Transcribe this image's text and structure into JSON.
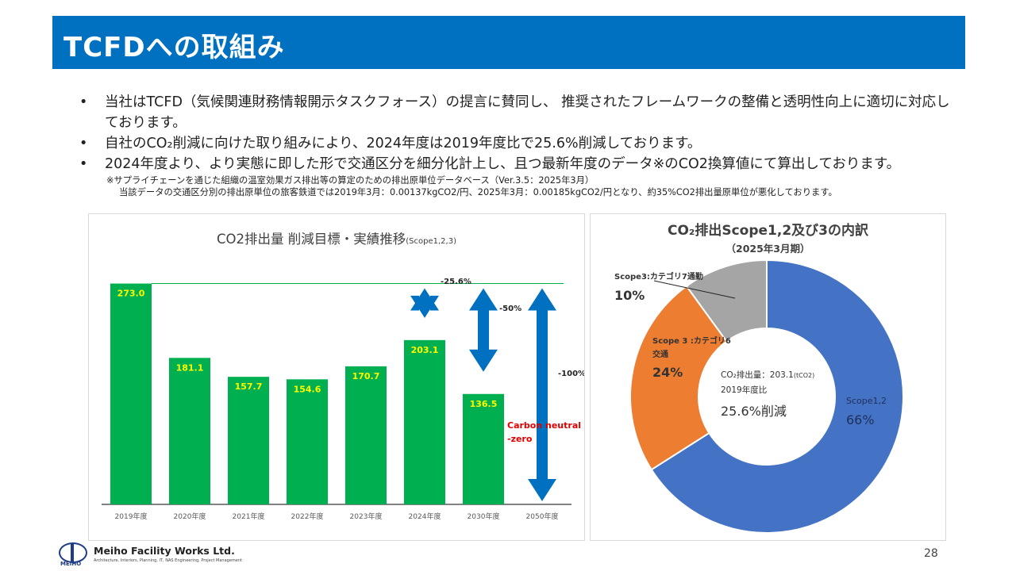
{
  "header": {
    "title": "TCFDへの取組み"
  },
  "bullets": [
    "当社はTCFD（気候関連財務情報開示タスクフォース）の提言に賛同し、 推奨されたフレームワークの整備と透明性向上に適切に対応しております。",
    "自社のCO₂削減に向けた取り組みにより、2024年度は2019年度比で25.6%削減しております。",
    "2024年度より、より実態に即した形で交通区分を細分化計上し、且つ最新年度のデータ※のCO2換算値にて算出しております。"
  ],
  "bullet_marker": "•",
  "notes": [
    "※サプライチェーンを通じた組織の温室効果ガス排出等の算定のための排出原単位データベース（Ver.3.5：2025年3月）",
    "当該データの交通区分別の排出原単位の旅客鉄道では2019年3月：0.00137kgCO2/円、2025年3月：0.00185kgCO2/円となり、約35%CO2排出量原単位が悪化しております。"
  ],
  "bar_title": {
    "main": "CO2排出量 削減目標・実績推移",
    "sub": "(Scope1,2,3)"
  },
  "donut_title": {
    "main": "CO₂排出Scope1,2及び3の内訳",
    "sub": "（2025年3月期）"
  },
  "donut_labels": {
    "scope3_commute": "Scope3:カテゴリ7通勤",
    "scope3_commute_pct": "10%",
    "scope3_travel_line1": "Scope 3 :カテゴリ6",
    "scope3_travel_line2": "交通",
    "scope3_travel_pct": "24%",
    "scope12": "Scope1,2",
    "scope12_pct": "66%",
    "center_line1": "CO₂排出量：203.1",
    "center_unit": "(tCO2)",
    "center_line2": "2019年度比",
    "center_line3": "25.6%削減"
  },
  "footer": {
    "logo_sub": "MEIHO",
    "company": "Meiho Facility Works Ltd.",
    "tagline": "Architecture, Interiors, Planning, IT, NAS Engineering, Project Management",
    "page": "28"
  },
  "colors": {
    "accent": "#0070c0",
    "bar": "#00b050",
    "arrow": "#0070c0",
    "neutral_text": "#e00000",
    "label_yellow": "#ffff00",
    "scope12": "#4472c4",
    "scope3_travel": "#ed7d31",
    "scope3_commute": "#a5a5a5"
  },
  "chart_data": [
    {
      "type": "bar",
      "title": "CO2排出量 削減目標・実績推移(Scope1,2,3)",
      "categories": [
        "2019年度",
        "2020年度",
        "2021年度",
        "2022年度",
        "2023年度",
        "2024年度",
        "2030年度",
        "2050年度"
      ],
      "values": [
        273.0,
        181.1,
        157.7,
        154.6,
        170.7,
        203.1,
        136.5,
        0
      ],
      "value_labels": [
        "273.0",
        "181.1",
        "157.7",
        "154.6",
        "170.7",
        "203.1",
        "136.5",
        ""
      ],
      "ylim": [
        0,
        300
      ],
      "reference_line": 273.0,
      "annotations": [
        {
          "category": "2024年度",
          "label": "-25.6%",
          "from": 273.0,
          "to": 203.1
        },
        {
          "category": "2030年度",
          "label": "-50%",
          "from": 273.0,
          "to": 136.5
        },
        {
          "category": "2050年度",
          "label": "-100%",
          "from": 273.0,
          "to": 0
        }
      ],
      "carbon_neutral_label": [
        "Carbon neutral",
        "-zero"
      ]
    },
    {
      "type": "pie",
      "title": "CO₂排出Scope1,2及び3の内訳（2025年3月期）",
      "labels": [
        "Scope1,2",
        "Scope 3 :カテゴリ6交通",
        "Scope3:カテゴリ7通勤"
      ],
      "values": [
        66,
        24,
        10
      ]
    }
  ]
}
